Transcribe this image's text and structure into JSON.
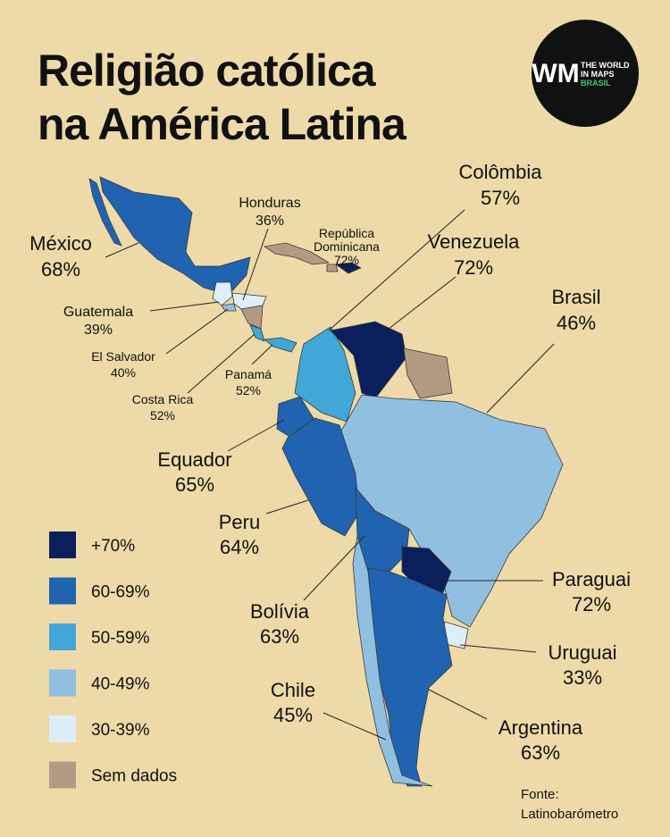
{
  "header": {
    "title_lines": [
      "Religião católica",
      "na América Latina"
    ]
  },
  "logo": {
    "mark": "WM",
    "lines": [
      "THE WORLD",
      "IN MAPS",
      "BRASIL"
    ]
  },
  "labels": [
    {
      "name": "Colômbia",
      "value": "57%"
    },
    {
      "name": "Venezuela",
      "value": "72%"
    },
    {
      "name": "Brasil",
      "value": "46%"
    },
    {
      "name": "Honduras",
      "value": "36%"
    },
    {
      "name": [
        "República",
        "Dominicana"
      ],
      "value": "72%"
    },
    {
      "name": "México",
      "value": "68%"
    },
    {
      "name": "Guatemala",
      "value": "39%"
    },
    {
      "name": "El Salvador",
      "value": "40%"
    },
    {
      "name": "Costa Rica",
      "value": "52%"
    },
    {
      "name": "Panamá",
      "value": "52%"
    },
    {
      "name": "Equador",
      "value": "65%"
    },
    {
      "name": "Peru",
      "value": "64%"
    },
    {
      "name": "Bolívia",
      "value": "63%"
    },
    {
      "name": "Chile",
      "value": "45%"
    },
    {
      "name": "Paraguai",
      "value": "72%"
    },
    {
      "name": "Uruguai",
      "value": "33%"
    },
    {
      "name": "Argentina",
      "value": "63%"
    }
  ],
  "legend": [
    {
      "label": "+70%",
      "color": "#0b1f5c"
    },
    {
      "label": "60-69%",
      "color": "#1f63b1"
    },
    {
      "label": "50-59%",
      "color": "#41a7d6"
    },
    {
      "label": "40-49%",
      "color": "#90bfe0"
    },
    {
      "label": "30-39%",
      "color": "#ddeef8"
    },
    {
      "label": "Sem dados",
      "color": "#b39b83"
    }
  ],
  "source": [
    "Fonte:",
    "Latinobarómetro"
  ]
}
